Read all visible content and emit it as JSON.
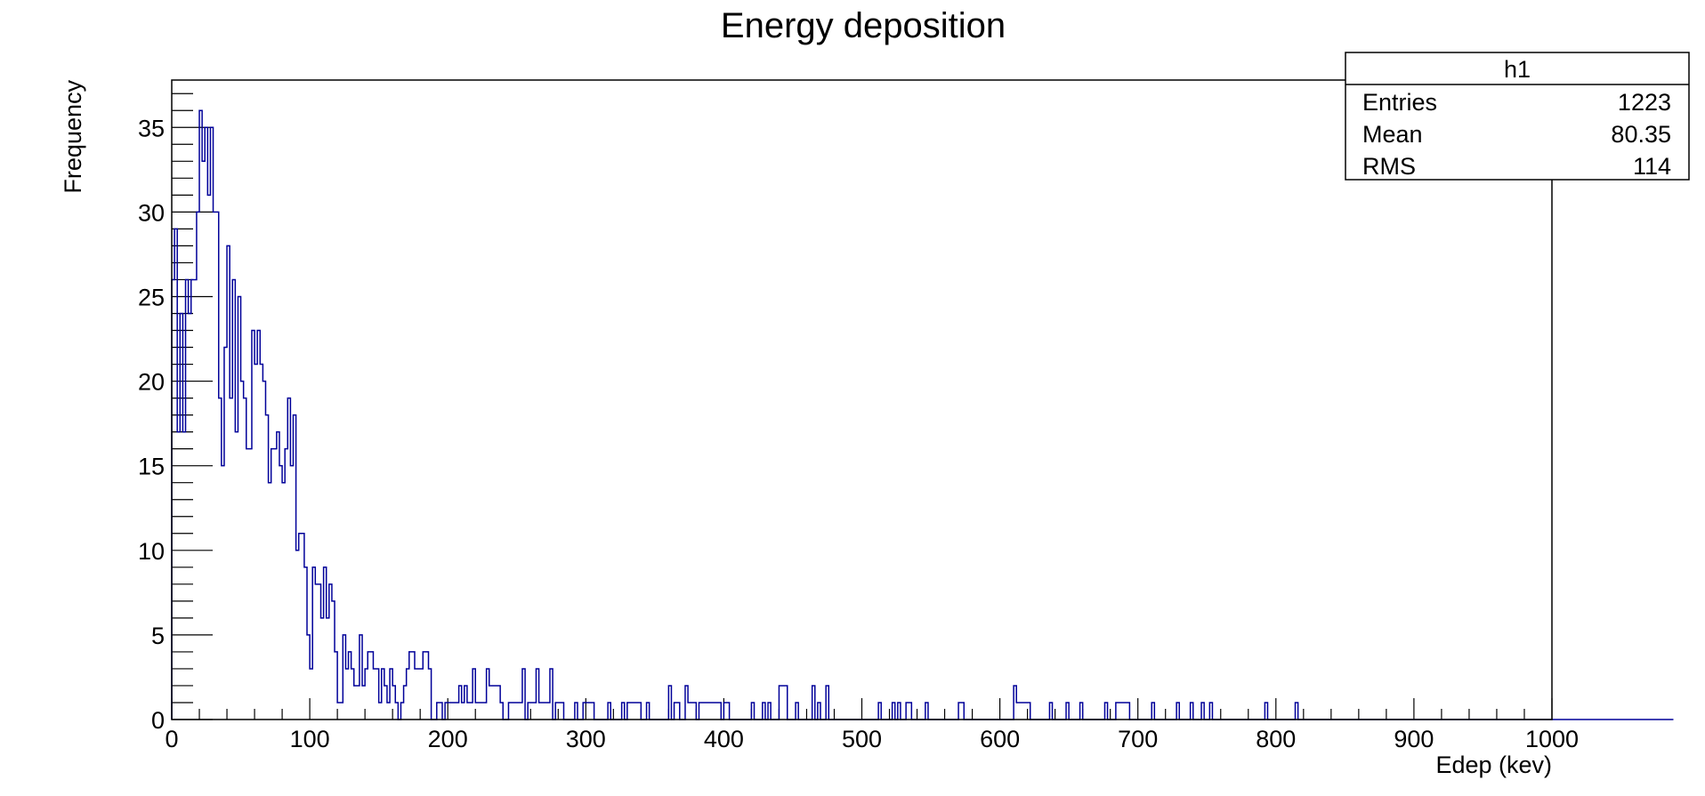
{
  "chart_data": {
    "type": "histogram",
    "title": "Energy deposition",
    "xlabel": "Edep (kev)",
    "ylabel": "Frequency",
    "xlim": [
      0,
      1000
    ],
    "ylim": [
      0,
      37.8
    ],
    "bin_width": 2,
    "x_ticks": [
      0,
      100,
      200,
      300,
      400,
      500,
      600,
      700,
      800,
      900,
      1000
    ],
    "y_ticks": [
      0,
      5,
      10,
      15,
      20,
      25,
      30,
      35
    ],
    "line_color": "#000099",
    "grid": false,
    "counts": [
      26,
      29,
      17,
      24,
      17,
      26,
      24,
      26,
      26,
      30,
      36,
      33,
      35,
      31,
      35,
      30,
      30,
      19,
      15,
      22,
      28,
      19,
      26,
      17,
      25,
      20,
      19,
      16,
      16,
      23,
      21,
      23,
      21,
      20,
      18,
      14,
      16,
      16,
      17,
      15,
      14,
      16,
      19,
      15,
      18,
      10,
      11,
      11,
      9,
      5,
      3,
      9,
      8,
      8,
      6,
      9,
      6,
      8,
      7,
      4,
      1,
      1,
      5,
      3,
      4,
      3,
      2,
      2,
      5,
      2,
      3,
      4,
      4,
      3,
      3,
      1,
      3,
      2,
      1,
      3,
      2,
      1,
      0,
      1,
      2,
      3,
      4,
      4,
      3,
      3,
      3,
      4,
      4,
      3,
      0,
      0,
      1,
      1,
      0,
      1,
      1,
      1,
      1,
      1,
      2,
      1,
      2,
      1,
      1,
      3,
      1,
      1,
      1,
      1,
      3,
      2,
      2,
      2,
      2,
      1,
      0,
      0,
      1,
      1,
      1,
      1,
      1,
      3,
      0,
      1,
      1,
      1,
      3,
      1,
      1,
      1,
      1,
      3,
      0,
      1,
      1,
      1,
      0,
      0,
      0,
      0,
      1,
      0,
      0,
      1,
      1,
      1,
      1,
      0,
      0,
      0,
      0,
      0,
      1,
      0,
      0,
      0,
      0,
      1,
      0,
      1,
      1,
      1,
      1,
      1,
      0,
      0,
      1,
      0,
      0,
      0,
      0,
      0,
      0,
      0,
      2,
      0,
      1,
      1,
      0,
      0,
      2,
      1,
      1,
      1,
      0,
      1,
      1,
      1,
      1,
      1,
      1,
      1,
      1,
      0,
      1,
      1,
      0,
      0,
      0,
      0,
      0,
      0,
      0,
      0,
      1,
      0,
      0,
      0,
      1,
      0,
      1,
      0,
      0,
      0,
      2,
      2,
      2,
      0,
      0,
      0,
      1,
      0,
      0,
      0,
      0,
      0,
      2,
      0,
      1,
      0,
      0,
      2,
      0,
      0,
      0,
      0,
      0,
      0,
      0,
      0,
      0,
      0,
      0,
      0,
      0,
      0,
      0,
      0,
      0,
      0,
      1,
      0,
      0,
      0,
      0,
      1,
      0,
      1,
      0,
      0,
      1,
      1,
      0,
      0,
      0,
      0,
      0,
      1,
      0,
      0,
      0,
      0,
      0,
      0,
      0,
      0,
      0,
      0,
      0,
      1,
      1,
      0,
      0,
      0,
      0,
      0,
      0,
      0,
      0,
      0,
      0,
      0,
      0,
      0,
      0,
      0,
      0,
      0,
      0,
      2,
      1,
      1,
      1,
      1,
      1,
      0,
      0,
      0,
      0,
      0,
      0,
      0,
      1,
      0,
      0,
      0,
      0,
      0,
      1,
      0,
      0,
      0,
      0,
      1,
      0,
      0,
      0,
      0,
      0,
      0,
      0,
      0,
      1,
      0,
      0,
      0,
      1,
      1,
      1,
      1,
      1,
      0,
      0,
      0,
      0,
      0,
      0,
      0,
      0,
      1,
      0,
      0,
      0,
      0,
      0,
      0,
      0,
      0,
      1,
      0,
      0,
      0,
      0,
      1,
      0,
      0,
      0,
      1,
      0,
      0,
      1,
      0,
      0,
      0,
      0,
      0,
      0,
      0,
      0,
      0,
      0,
      0,
      0,
      0,
      0,
      0,
      0,
      0,
      0,
      0,
      1,
      0,
      0,
      0,
      0,
      0,
      0,
      0,
      0,
      0,
      0,
      1,
      0,
      0,
      0,
      0,
      0,
      0,
      0,
      0,
      0,
      0,
      0,
      0,
      0,
      0,
      0,
      0,
      0,
      0,
      0,
      0,
      0,
      0,
      0,
      0,
      0,
      0,
      0,
      0,
      0,
      0,
      0,
      0,
      0,
      0,
      0,
      0,
      0,
      0,
      0,
      0,
      0,
      0,
      0,
      0,
      0,
      0,
      0,
      0,
      0,
      0,
      0,
      0,
      0,
      0,
      0,
      0,
      0,
      0,
      0,
      0,
      0,
      0,
      0,
      0,
      0,
      0,
      0,
      0,
      0,
      0,
      0,
      0,
      0,
      0,
      0,
      0,
      0,
      0,
      0,
      0,
      0,
      0,
      0,
      0,
      0,
      0,
      0,
      0,
      0,
      0,
      0,
      0,
      0,
      0,
      0,
      0,
      0,
      0,
      0,
      0,
      0,
      0,
      0,
      0,
      0,
      0,
      0,
      0,
      0,
      0,
      0,
      0,
      0,
      0,
      0,
      0,
      0,
      0,
      0,
      0,
      0,
      0,
      0,
      0,
      0,
      0,
      0,
      0,
      0,
      0,
      0,
      0,
      0,
      0,
      0,
      0
    ]
  },
  "stats_box": {
    "title": "h1",
    "rows": [
      {
        "label": "Entries",
        "value": "1223"
      },
      {
        "label": "Mean",
        "value": "80.35"
      },
      {
        "label": "RMS",
        "value": "114"
      }
    ]
  }
}
